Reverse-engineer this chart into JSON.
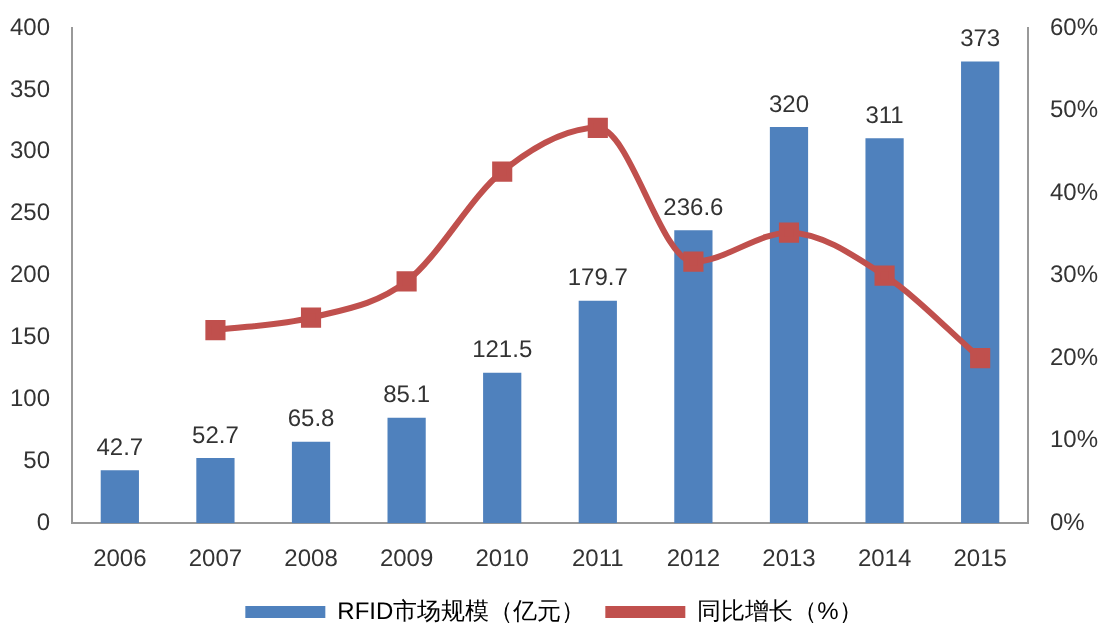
{
  "chart_data": {
    "type": "bar",
    "categories": [
      "2006",
      "2007",
      "2008",
      "2009",
      "2010",
      "2011",
      "2012",
      "2013",
      "2014",
      "2015"
    ],
    "series": [
      {
        "name": "RFID市场规模（亿元）",
        "color": "#4f81bd",
        "values": [
          42.7,
          52.7,
          65.8,
          85.1,
          121.5,
          179.7,
          236.6,
          320,
          311,
          373
        ],
        "value_labels": [
          "42.7",
          "52.7",
          "65.8",
          "85.1",
          "121.5",
          "179.7",
          "236.6",
          "320",
          "311",
          "373"
        ]
      },
      {
        "name": "同比增长（%）",
        "type": "line",
        "axis": "y2",
        "color": "#c0504d",
        "marker": "square",
        "values": [
          null,
          23.4,
          24.9,
          29.3,
          42.6,
          47.9,
          31.7,
          35.2,
          30,
          20
        ]
      }
    ],
    "ylim": [
      0,
      400
    ],
    "yticks": [
      0,
      50,
      100,
      150,
      200,
      250,
      300,
      350,
      400
    ],
    "y2lim": [
      0,
      60
    ],
    "y2ticks": [
      {
        "value": 0,
        "label": "0%"
      },
      {
        "value": 10,
        "label": "10%"
      },
      {
        "value": 20,
        "label": "20%"
      },
      {
        "value": 30,
        "label": "30%"
      },
      {
        "value": 40,
        "label": "40%"
      },
      {
        "value": 50,
        "label": "50%"
      },
      {
        "value": 60,
        "label": "60%"
      }
    ],
    "grid": false,
    "legend": "bottom"
  }
}
